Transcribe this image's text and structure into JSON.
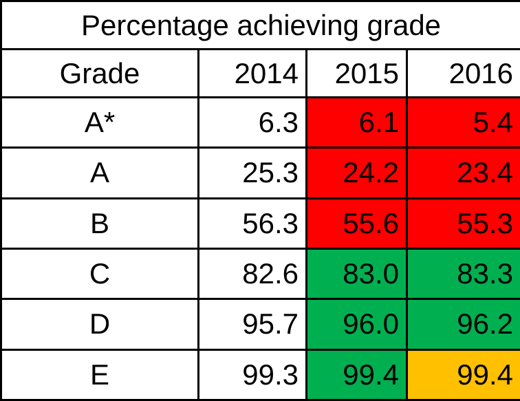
{
  "chart_data": {
    "type": "table",
    "title": "Percentage achieving grade",
    "columns": [
      "Grade",
      "2014",
      "2015",
      "2016"
    ],
    "rows": [
      {
        "grade": "A*",
        "values": [
          "6.3",
          "6.1",
          "5.4"
        ],
        "fills": [
          "none",
          "red",
          "red"
        ]
      },
      {
        "grade": "A",
        "values": [
          "25.3",
          "24.2",
          "23.4"
        ],
        "fills": [
          "none",
          "red",
          "red"
        ]
      },
      {
        "grade": "B",
        "values": [
          "56.3",
          "55.6",
          "55.3"
        ],
        "fills": [
          "none",
          "red",
          "red"
        ]
      },
      {
        "grade": "C",
        "values": [
          "82.6",
          "83.0",
          "83.3"
        ],
        "fills": [
          "none",
          "green",
          "green"
        ]
      },
      {
        "grade": "D",
        "values": [
          "95.7",
          "96.0",
          "96.2"
        ],
        "fills": [
          "none",
          "green",
          "green"
        ]
      },
      {
        "grade": "E",
        "values": [
          "99.3",
          "99.4",
          "99.4"
        ],
        "fills": [
          "none",
          "green",
          "amber"
        ]
      }
    ],
    "colors": {
      "red": "#ff0000",
      "green": "#00b050",
      "amber": "#ffc000"
    }
  }
}
